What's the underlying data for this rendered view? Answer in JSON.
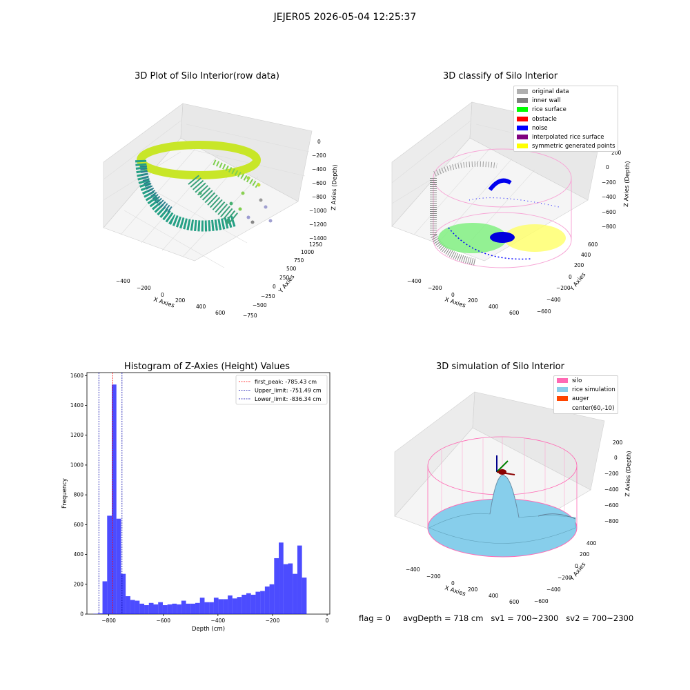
{
  "figure": {
    "suptitle": "JEJER05 2026-05-04 12:25:37"
  },
  "panels": {
    "raw": {
      "title": "3D Plot of Silo Interior(row data)",
      "xlabel": "X Axies",
      "ylabel": "Y Axies",
      "zlabel": "Z Axies (Depth)",
      "xticks": [
        "−400",
        "−200",
        "0",
        "200",
        "400",
        "600"
      ],
      "yticks": [
        "−750",
        "−500",
        "−250",
        "0",
        "250",
        "500",
        "750",
        "1000",
        "1250"
      ],
      "zticks": [
        "0",
        "−200",
        "−400",
        "−600",
        "−800",
        "−1000",
        "−1200",
        "−1400"
      ]
    },
    "classify": {
      "title": "3D classify of Silo Interior",
      "xlabel": "X Axies",
      "ylabel": "Y Axies",
      "zlabel": "Z Axies (Depth)",
      "xticks": [
        "−400",
        "−200",
        "0",
        "200",
        "400",
        "600"
      ],
      "yticks": [
        "−600",
        "−400",
        "−200",
        "0",
        "200",
        "400",
        "600"
      ],
      "zticks": [
        "200",
        "0",
        "−200",
        "−400",
        "−600",
        "−800"
      ],
      "legend": [
        {
          "label": "original data",
          "color": "#b0b0b0"
        },
        {
          "label": "inner wall",
          "color": "#808080"
        },
        {
          "label": "rice surface",
          "color": "#00ff00"
        },
        {
          "label": "obstacle",
          "color": "#ff0000"
        },
        {
          "label": "noise",
          "color": "#0000ff"
        },
        {
          "label": "interpolated rice surface",
          "color": "#800080"
        },
        {
          "label": "symmetric generated points",
          "color": "#ffff00"
        }
      ]
    },
    "simulation": {
      "title": "3D simulation of Silo Interior",
      "xlabel": "X Axies",
      "ylabel": "Y Axies",
      "zlabel": "Z Axies (Depth)",
      "xticks": [
        "−400",
        "−200",
        "0",
        "200",
        "400",
        "600"
      ],
      "yticks": [
        "−600",
        "−400",
        "−200",
        "0",
        "200",
        "400"
      ],
      "zticks": [
        "200",
        "0",
        "−200",
        "−400",
        "−600",
        "−800"
      ],
      "legend": [
        {
          "label": "silo",
          "color": "#ff69b4"
        },
        {
          "label": "rice simulation",
          "color": "#87ceeb"
        },
        {
          "label": "auger",
          "color": "#ff4500"
        },
        {
          "label": "center(60,-10)",
          "color": "#ffffff"
        }
      ]
    }
  },
  "status": {
    "flag": "flag = 0",
    "avg_depth": "avgDepth = 718 cm",
    "sv1": "sv1 = 700~2300",
    "sv2": "sv2 = 700~2300"
  },
  "chart_data": {
    "type": "bar",
    "title": "Histogram of Z-Axies (Height) Values",
    "xlabel": "Depth (cm)",
    "ylabel": "Frequency",
    "xlim": [
      -880,
      10
    ],
    "ylim": [
      0,
      1620
    ],
    "xticks": [
      -800,
      -600,
      -400,
      -200,
      0
    ],
    "xtick_labels": [
      "−800",
      "−600",
      "−400",
      "−200",
      "0"
    ],
    "yticks": [
      0,
      200,
      400,
      600,
      800,
      1000,
      1200,
      1400,
      1600
    ],
    "bar_color": "#0000ff",
    "bar_width": 17,
    "bins_left": [
      -857,
      -840,
      -823,
      -806,
      -789,
      -772,
      -755,
      -738,
      -721,
      -704,
      -687,
      -670,
      -653,
      -636,
      -619,
      -602,
      -585,
      -568,
      -551,
      -534,
      -517,
      -500,
      -483,
      -466,
      -449,
      -432,
      -415,
      -398,
      -381,
      -364,
      -347,
      -330,
      -313,
      -296,
      -279,
      -262,
      -245,
      -228,
      -211,
      -194,
      -177,
      -160,
      -143,
      -126,
      -109,
      -92,
      -75,
      -58,
      -41,
      -24,
      -7
    ],
    "values": [
      2,
      5,
      220,
      660,
      1540,
      640,
      270,
      120,
      95,
      90,
      70,
      60,
      75,
      65,
      80,
      60,
      65,
      70,
      65,
      90,
      70,
      70,
      75,
      110,
      80,
      80,
      110,
      100,
      100,
      125,
      105,
      115,
      130,
      140,
      130,
      150,
      155,
      185,
      200,
      375,
      480,
      335,
      340,
      270,
      460,
      245,
      0,
      0,
      0,
      0,
      0
    ],
    "vlines": [
      {
        "label": "first_peak: -785.43 cm",
        "x": -785.43,
        "color": "#ff0000"
      },
      {
        "label": "Upper_limit: -751.49 cm",
        "x": -751.49,
        "color": "#0000aa"
      },
      {
        "label": "Lower_limit: -836.34 cm",
        "x": -836.34,
        "color": "#0000aa"
      }
    ],
    "legend_position": "upper right"
  }
}
